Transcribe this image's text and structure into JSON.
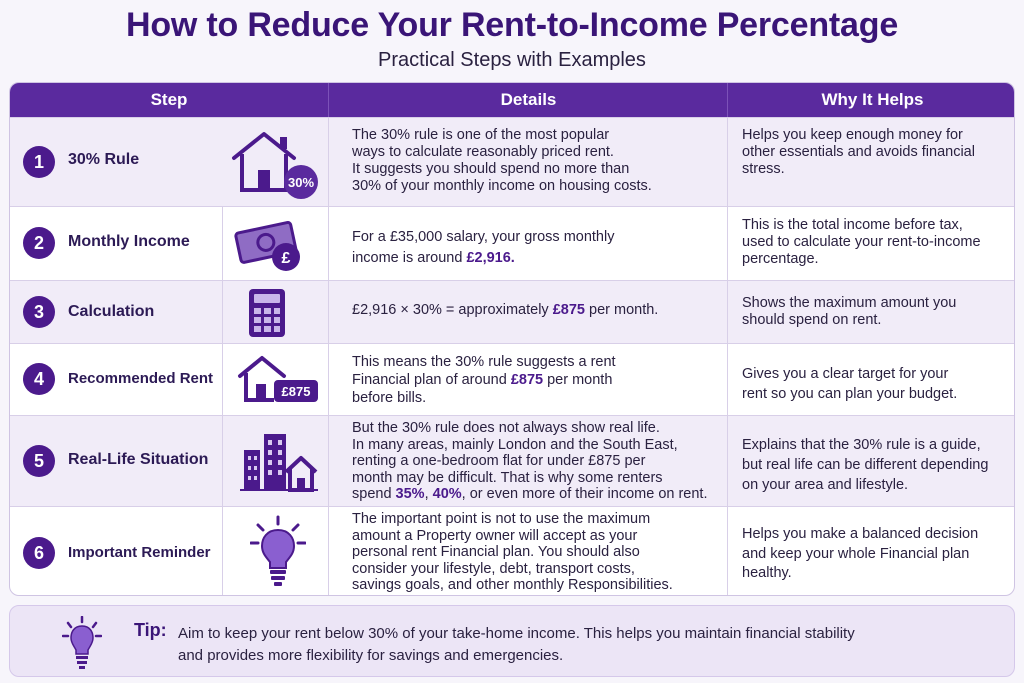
{
  "header": {
    "title": "How to Reduce Your Rent-to-Income Percentage",
    "subtitle": "Practical Steps with Examples"
  },
  "columns": {
    "step": "Step",
    "details": "Details",
    "why": "Why It Helps"
  },
  "rows": [
    {
      "number": "1",
      "label": "30% Rule",
      "icon": "house-30-percent-icon",
      "icon_badge": "30%",
      "details": [
        "The 30% rule is one of the most popular",
        "ways to calculate reasonably priced rent.",
        "It suggests you should spend no more than",
        "30% of your monthly income on housing costs."
      ],
      "why": [
        "Helps you keep enough money for",
        "other essentials and avoids financial",
        "stress."
      ]
    },
    {
      "number": "2",
      "label": "Monthly Income",
      "icon": "banknote-pound-icon",
      "icon_badge": "£",
      "details_a": "For a £35,000 salary, your gross monthly",
      "details_b": "income is around ",
      "details_hl": "£2,916.",
      "why": [
        "This is the total income before tax,",
        "used to calculate your rent-to-income",
        "percentage."
      ]
    },
    {
      "number": "3",
      "label": "Calculation",
      "icon": "calculator-icon",
      "details_a": "£2,916 × 30% = approximately ",
      "details_hl": "£875",
      "details_b": " per month.",
      "why": [
        "Shows the maximum amount you",
        "should spend on rent."
      ]
    },
    {
      "number": "4",
      "label": "Recommended Rent",
      "icon": "house-price-tag-icon",
      "icon_badge": "£875",
      "details_l1": "This means the 30% rule suggests a rent",
      "details_l2a": "Financial plan of around ",
      "details_hl": "£875",
      "details_l2b": " per month",
      "details_l3": "before bills.",
      "why": [
        "Gives you a clear target for your",
        "rent so you can plan your budget."
      ]
    },
    {
      "number": "5",
      "label": "Real-Life Situation",
      "icon": "city-buildings-icon",
      "details": [
        "But the 30% rule does not always show real life.",
        "In many areas, mainly London and the South East,",
        "renting a one-bedroom flat for under £875 per",
        "month may be difficult. That is why some renters"
      ],
      "details_last_a": "spend ",
      "details_hl1": "35%",
      "details_sep": ", ",
      "details_hl2": "40%",
      "details_last_b": ", or even more of their income on rent.",
      "why": [
        "Explains that the 30% rule is a guide,",
        "but real life can be different depending",
        "on your area and lifestyle."
      ]
    },
    {
      "number": "6",
      "label": "Important Reminder",
      "icon": "lightbulb-icon",
      "details": [
        "The important point is not to use the maximum",
        "amount a Property owner will accept as your",
        "personal rent Financial plan. You should also",
        "consider your lifestyle, debt, transport costs,",
        "savings goals, and other monthly Responsibilities."
      ],
      "why": [
        "Helps you make a balanced decision",
        "and keep your whole Financial plan",
        "healthy."
      ]
    }
  ],
  "tip": {
    "icon": "lightbulb-icon",
    "label": "Tip:",
    "lines": [
      "Aim to keep your rent below 30% of your take-home income. This helps you maintain financial stability",
      "and provides more flexibility for savings and emergencies."
    ]
  },
  "colors": {
    "primary": "#5a2a9e",
    "dark": "#3a1577",
    "accent": "#4b1a8c",
    "row_alt": "#f1ecf8",
    "tip_bg": "#ece5f6"
  }
}
